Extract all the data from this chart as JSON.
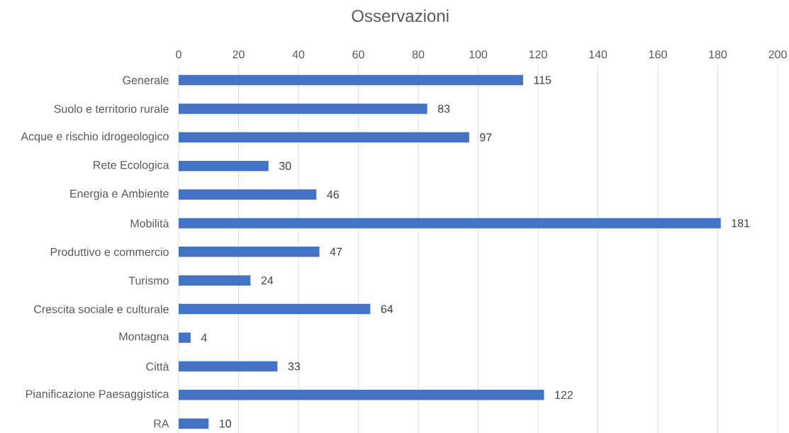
{
  "chart_data": {
    "type": "bar",
    "orientation": "horizontal",
    "title": "Osservazioni",
    "categories": [
      "Generale",
      "Suolo e territorio rurale",
      "Acque e rischio idrogeologico",
      "Rete Ecologica",
      "Energia e Ambiente",
      "Mobilità",
      "Produttivo e commercio",
      "Turismo",
      "Crescita sociale e culturale",
      "Montagna",
      "Città",
      "Pianificazione Paesaggistica",
      "RA"
    ],
    "values": [
      115,
      83,
      97,
      30,
      46,
      181,
      47,
      24,
      64,
      4,
      33,
      122,
      10
    ],
    "color": "#4472c4",
    "xlim": [
      0,
      200
    ],
    "xticks": [
      0,
      20,
      40,
      60,
      80,
      100,
      120,
      140,
      160,
      180,
      200
    ],
    "grid": "x",
    "data_labels": true
  }
}
